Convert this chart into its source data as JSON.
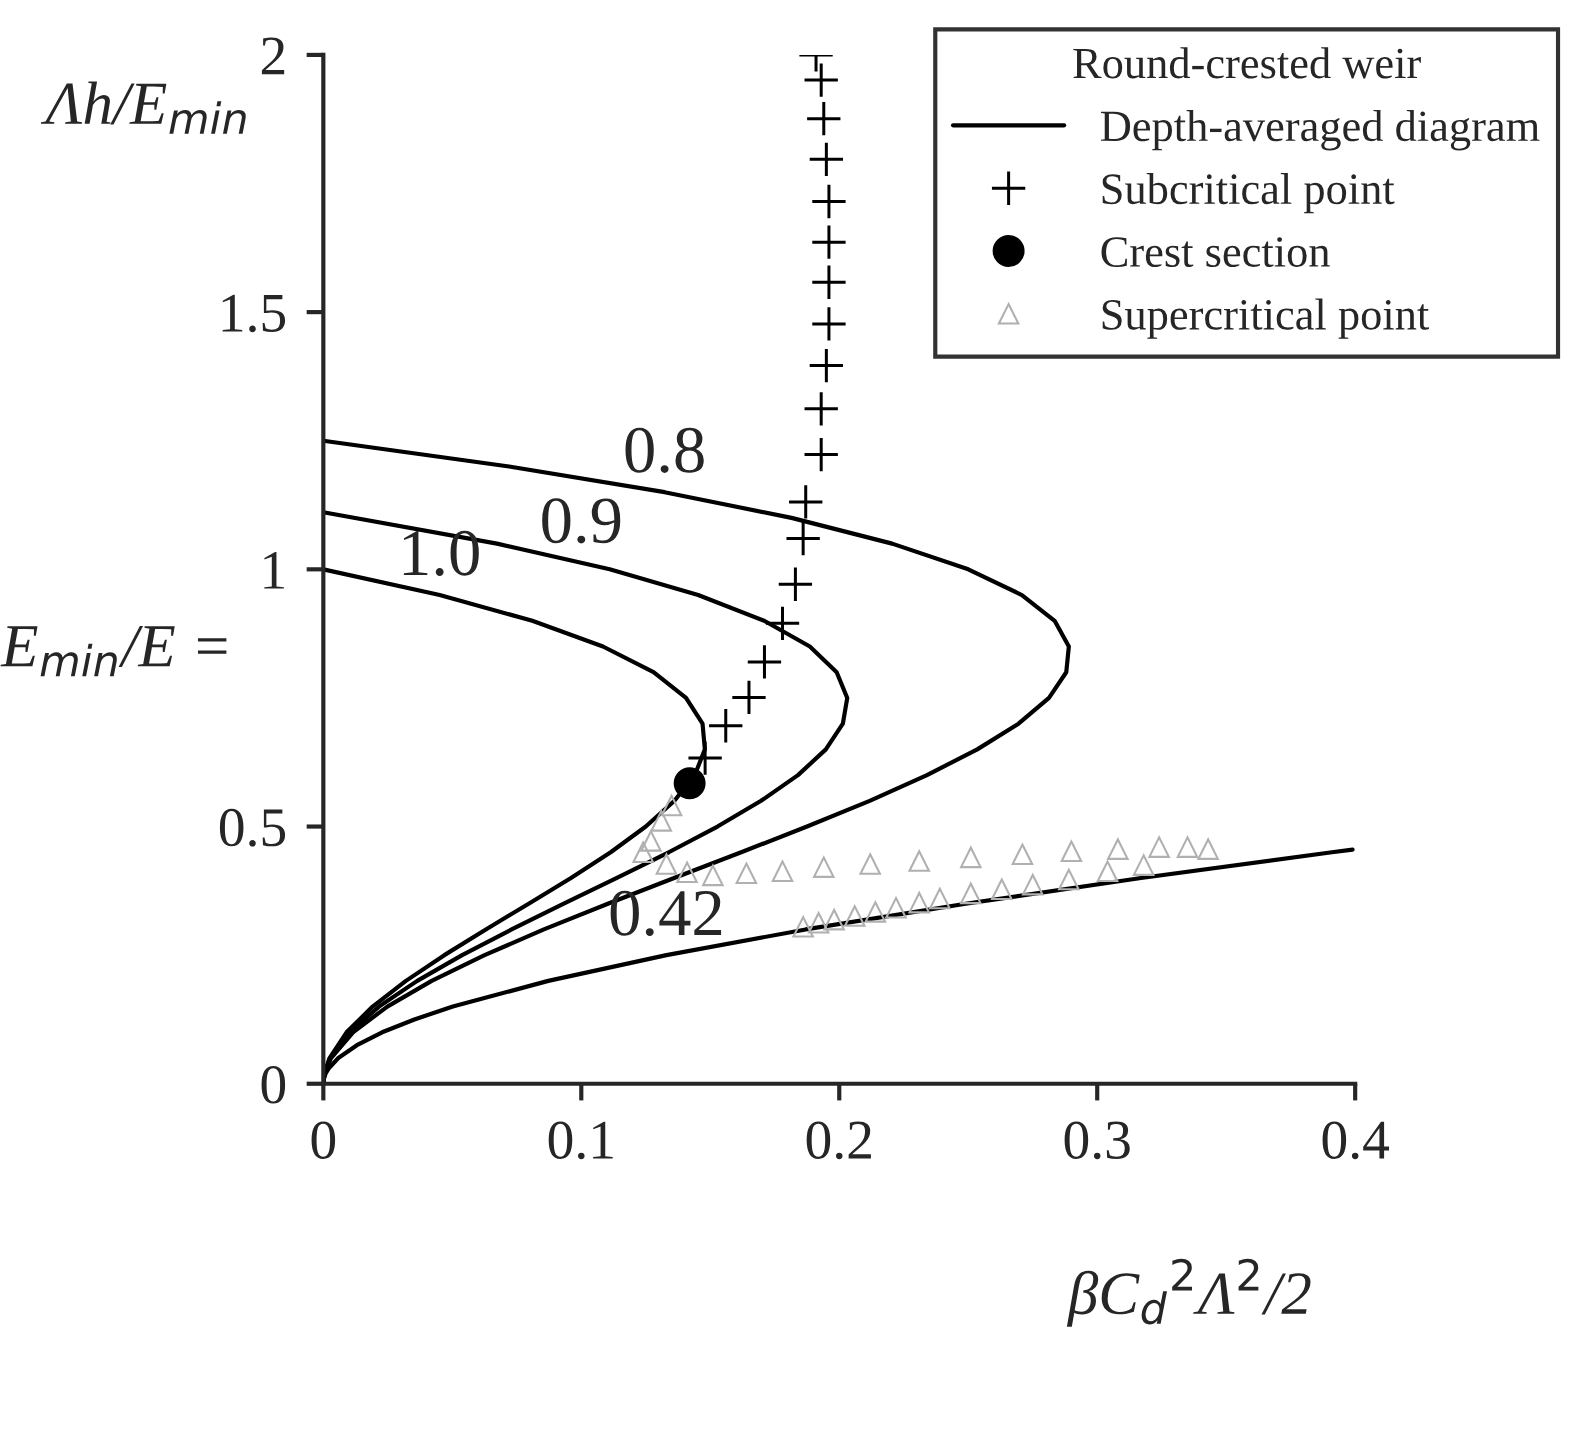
{
  "chart_data": {
    "type": "line",
    "xlabel": "βC$_{d}$$^{2}$Λ$^{2}$/2",
    "ylabel": "Λh/E$_{min}$",
    "legend_title": "Round-crested weir",
    "legend": "top right",
    "grid": false,
    "xlim": [
      0,
      0.4
    ],
    "xticks": [
      0,
      0.1,
      0.2,
      0.3,
      0.4
    ],
    "ylim": [
      0,
      2
    ],
    "yticks": [
      0,
      0.5,
      1,
      1.5,
      2
    ],
    "annotations": [
      "E$_{min}$/E =",
      {
        "text": "0.8",
        "x": 0.1323,
        "y": 1.15
      },
      {
        "text": "0.9",
        "x": 0.1,
        "y": 1.013
      },
      {
        "text": "1.0",
        "x": 0.0451,
        "y": 0.95
      },
      {
        "text": "0.42",
        "x": 0.133,
        "y": 0.25
      }
    ],
    "series": [
      {
        "name": "Depth-averaged diagram",
        "color": "#000000",
        "marker": "none",
        "line_style": "solid",
        "x": [
          0,
          0.0004,
          0.0024,
          0.009,
          0.0191,
          0.032,
          0.0469,
          0.063,
          0.0796,
          0.096,
          0.1114,
          0.125,
          0.1361,
          0.144,
          0.1479,
          0.147,
          0.1406,
          0.128,
          0.1084,
          0.081,
          0.0451,
          0
        ],
        "values": [
          0,
          0.02,
          0.05,
          0.1,
          0.15,
          0.2,
          0.25,
          0.3,
          0.35,
          0.4,
          0.45,
          0.5,
          0.55,
          0.6,
          0.65,
          0.7,
          0.75,
          0.8,
          0.85,
          0.9,
          0.95,
          1.0
        ]
      },
      {
        "color": "#000000",
        "marker": "none",
        "line_style": "solid",
        "x": [
          0,
          0.0004,
          0.0027,
          0.0101,
          0.0216,
          0.0364,
          0.0538,
          0.073,
          0.0932,
          0.1138,
          0.1339,
          0.1528,
          0.1697,
          0.184,
          0.1948,
          0.2014,
          0.2031,
          0.199,
          0.1886,
          0.1709,
          0.1453,
          0.111,
          0.0673,
          0
        ],
        "values": [
          0,
          0.02,
          0.05,
          0.1,
          0.15,
          0.2,
          0.25,
          0.3,
          0.35,
          0.4,
          0.45,
          0.5,
          0.55,
          0.6,
          0.65,
          0.7,
          0.75,
          0.8,
          0.85,
          0.9,
          0.95,
          1.0,
          1.05,
          1.111
        ]
      },
      {
        "color": "#000000",
        "marker": "none",
        "line_style": "solid",
        "x": [
          0,
          0.0005,
          0.003,
          0.0115,
          0.0248,
          0.042,
          0.0625,
          0.0855,
          0.1103,
          0.136,
          0.162,
          0.1875,
          0.2118,
          0.234,
          0.2535,
          0.2695,
          0.2813,
          0.288,
          0.289,
          0.2835,
          0.2708,
          0.25,
          0.2205,
          0.1815,
          0.1323,
          0.072,
          0
        ],
        "values": [
          0,
          0.02,
          0.05,
          0.1,
          0.15,
          0.2,
          0.25,
          0.3,
          0.35,
          0.4,
          0.45,
          0.5,
          0.55,
          0.6,
          0.65,
          0.7,
          0.75,
          0.8,
          0.85,
          0.9,
          0.95,
          1.0,
          1.05,
          1.1,
          1.15,
          1.2,
          1.25
        ]
      },
      {
        "color": "#000000",
        "marker": "none",
        "line_style": "solid",
        "x": [
          0,
          0.0002,
          0.0009,
          0.0021,
          0.0058,
          0.013,
          0.0228,
          0.0353,
          0.0502,
          0.0872,
          0.133,
          0.187,
          0.249,
          0.317,
          0.391,
          0.399
        ],
        "values": [
          0,
          0.01,
          0.02,
          0.03,
          0.05,
          0.075,
          0.1,
          0.125,
          0.15,
          0.2,
          0.25,
          0.3,
          0.35,
          0.4,
          0.45,
          0.455
        ]
      },
      {
        "type": "scatter",
        "name": "Subcritical point",
        "color": "#000000",
        "marker": "cross",
        "x": [
          0.148,
          0.156,
          0.165,
          0.171,
          0.178,
          0.183,
          0.186,
          0.187,
          0.193,
          0.193,
          0.195,
          0.196,
          0.196,
          0.196,
          0.196,
          0.195,
          0.194,
          0.193,
          0.191
        ],
        "values": [
          0.633,
          0.696,
          0.751,
          0.82,
          0.895,
          0.971,
          1.06,
          1.131,
          1.223,
          1.312,
          1.396,
          1.477,
          1.558,
          1.636,
          1.715,
          1.797,
          1.876,
          1.951,
          2.0
        ]
      },
      {
        "type": "scatter",
        "name": "Crest section",
        "color": "#000000",
        "marker": "circle",
        "x": [
          0.142
        ],
        "values": [
          0.584
        ]
      },
      {
        "type": "scatter",
        "name": "Supercritical point",
        "color": "#b0b0b0",
        "marker": "triangle",
        "x": [
          0.124,
          0.127,
          0.131,
          0.135,
          0.133,
          0.141,
          0.151,
          0.164,
          0.178,
          0.194,
          0.212,
          0.231,
          0.251,
          0.271,
          0.29,
          0.308,
          0.324,
          0.335,
          0.343,
          0.186,
          0.192,
          0.198,
          0.206,
          0.214,
          0.222,
          0.231,
          0.239,
          0.251,
          0.263,
          0.275,
          0.289,
          0.304,
          0.318
        ],
        "values": [
          0.45,
          0.472,
          0.511,
          0.541,
          0.427,
          0.411,
          0.405,
          0.409,
          0.413,
          0.421,
          0.427,
          0.433,
          0.44,
          0.446,
          0.452,
          0.456,
          0.46,
          0.46,
          0.456,
          0.305,
          0.313,
          0.319,
          0.326,
          0.334,
          0.342,
          0.352,
          0.36,
          0.37,
          0.378,
          0.387,
          0.397,
          0.413,
          0.425
        ]
      }
    ]
  }
}
